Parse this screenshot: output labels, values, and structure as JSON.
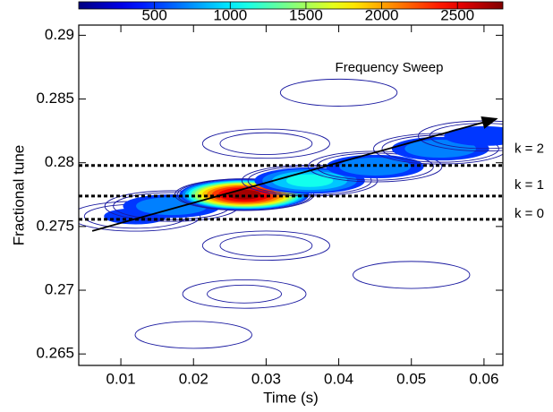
{
  "chart_data": {
    "type": "contour",
    "x_label": "Time (s)",
    "y_label": "Fractional tune",
    "xlim": [
      0.0042,
      0.0626
    ],
    "xticks": [
      0.01,
      0.02,
      0.03,
      0.04,
      0.05,
      0.06
    ],
    "ylim": [
      0.2641,
      0.2908
    ],
    "yticks": [
      0.265,
      0.27,
      0.275,
      0.28,
      0.285,
      0.29
    ],
    "zlim": [
      0,
      2800
    ],
    "zticks": [
      500,
      1000,
      1500,
      2000,
      2500
    ],
    "colormap": "jet",
    "blobs": [
      {
        "x": 0.012,
        "y": 0.2758,
        "z": 600
      },
      {
        "x": 0.017,
        "y": 0.2766,
        "z": 900
      },
      {
        "x": 0.027,
        "y": 0.2775,
        "z": 2800
      },
      {
        "x": 0.036,
        "y": 0.2786,
        "z": 1200
      },
      {
        "x": 0.045,
        "y": 0.2797,
        "z": 900
      },
      {
        "x": 0.054,
        "y": 0.2811,
        "z": 900
      },
      {
        "x": 0.06,
        "y": 0.2821,
        "z": 700
      },
      {
        "x": 0.03,
        "y": 0.2815,
        "z": 500
      },
      {
        "x": 0.03,
        "y": 0.2735,
        "z": 500
      },
      {
        "x": 0.027,
        "y": 0.2697,
        "z": 400
      },
      {
        "x": 0.02,
        "y": 0.2665,
        "z": 300
      },
      {
        "x": 0.04,
        "y": 0.2855,
        "z": 300
      },
      {
        "x": 0.05,
        "y": 0.2712,
        "z": 300
      }
    ],
    "sweep": {
      "label": "Frequency Sweep",
      "x": [
        0.00606,
        0.06172
      ],
      "y": [
        0.27465,
        0.28345
      ]
    },
    "hlines": [
      {
        "label": "k = 2",
        "y": 0.27979
      },
      {
        "label": "k = 1",
        "y": 0.27739
      },
      {
        "label": "k = 0",
        "y": 0.27556
      }
    ]
  }
}
